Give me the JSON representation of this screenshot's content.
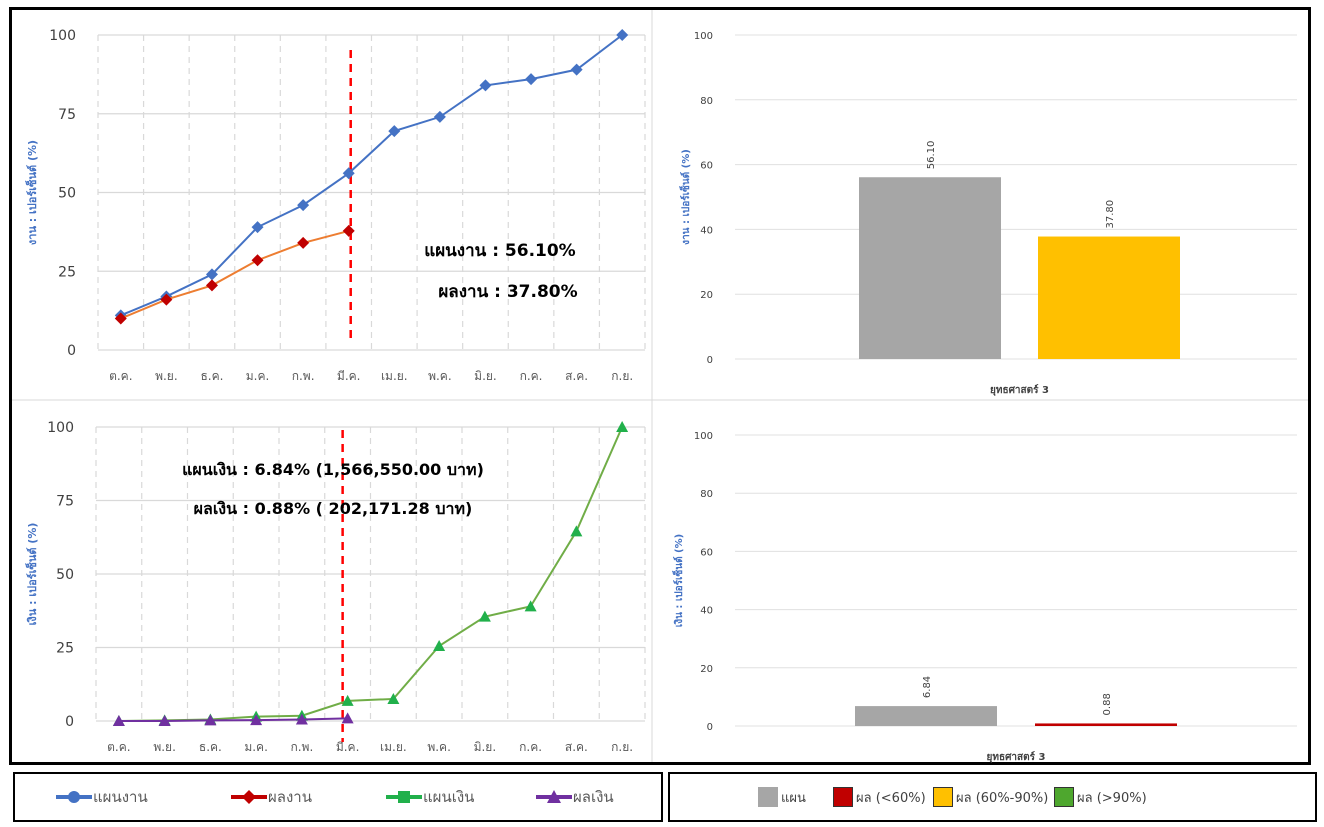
{
  "months": [
    "ต.ค.",
    "พ.ย.",
    "ธ.ค.",
    "ม.ค.",
    "ก.พ.",
    "มี.ค.",
    "เม.ย.",
    "พ.ค.",
    "มิ.ย.",
    "ก.ค.",
    "ส.ค.",
    "ก.ย."
  ],
  "chart_data": [
    {
      "type": "line",
      "ylabel": "งาน : เปอร์เซ็นต์ (%)",
      "ylim": [
        0,
        100
      ],
      "yticks": [
        0,
        25,
        50,
        75,
        100
      ],
      "current_month_marker": "มี.ค.",
      "series": [
        {
          "name": "แผนงาน",
          "values": [
            11,
            17,
            24,
            39,
            46,
            56.1,
            69.5,
            74,
            84,
            86,
            89,
            100
          ]
        },
        {
          "name": "ผลงาน",
          "values": [
            10,
            16,
            20.5,
            28.5,
            34,
            37.8
          ]
        }
      ],
      "annotations": [
        "แผนงาน : 56.10%",
        "ผลงาน : 37.80%"
      ]
    },
    {
      "type": "bar",
      "ylabel": "งาน : เปอร์เซ็นต์ (%)",
      "xlabel": "ยุทธศาสตร์ 3",
      "ylim": [
        0,
        100
      ],
      "yticks": [
        0,
        20,
        40,
        60,
        80,
        100
      ],
      "values": [
        56.1,
        37.8
      ],
      "value_labels": [
        "56.10",
        "37.80"
      ],
      "colors": [
        "#a6a6a6",
        "#ffc000"
      ]
    },
    {
      "type": "line",
      "ylabel": "เงิน : เปอร์เซ็นต์ (%)",
      "ylim": [
        0,
        100
      ],
      "yticks": [
        0,
        25,
        50,
        75,
        100
      ],
      "current_month_marker": "มี.ค.",
      "series": [
        {
          "name": "แผนเงิน",
          "values": [
            0,
            0.2,
            0.5,
            1.5,
            1.8,
            6.84,
            7.5,
            25.5,
            35.5,
            39,
            64.5,
            100
          ]
        },
        {
          "name": "ผลเงิน",
          "values": [
            0,
            0,
            0.2,
            0.3,
            0.5,
            0.88
          ]
        }
      ],
      "annotations": [
        "แผนเงิน :  6.84% (1,566,550.00 บาท)",
        "ผลเงิน :  0.88% ( 202,171.28 บาท)"
      ]
    },
    {
      "type": "bar",
      "ylabel": "เงิน : เปอร์เซ็นต์ (%)",
      "xlabel": "ยุทธศาสตร์ 3",
      "ylim": [
        0,
        100
      ],
      "yticks": [
        0,
        20,
        40,
        60,
        80,
        100
      ],
      "values": [
        6.84,
        0.88
      ],
      "value_labels": [
        "6.84",
        "0.88"
      ],
      "colors": [
        "#a6a6a6",
        "#c00000"
      ]
    }
  ],
  "legend_lines": [
    {
      "label": "แผนงาน",
      "color": "#4472c4",
      "marker": "circle"
    },
    {
      "label": "ผลงาน",
      "color": "#c00000",
      "marker": "diamond"
    },
    {
      "label": "แผนเงิน",
      "color": "#21b04b",
      "marker": "square"
    },
    {
      "label": "ผลเงิน",
      "color": "#7030a0",
      "marker": "triangle"
    }
  ],
  "legend_bars": [
    {
      "label": "แผน",
      "color": "#a6a6a6"
    },
    {
      "label": "ผล (<60%)",
      "color": "#c00000"
    },
    {
      "label": "ผล (60%-90%)",
      "color": "#ffc000"
    },
    {
      "label": "ผล (>90%)",
      "color": "#4ea72e"
    }
  ]
}
